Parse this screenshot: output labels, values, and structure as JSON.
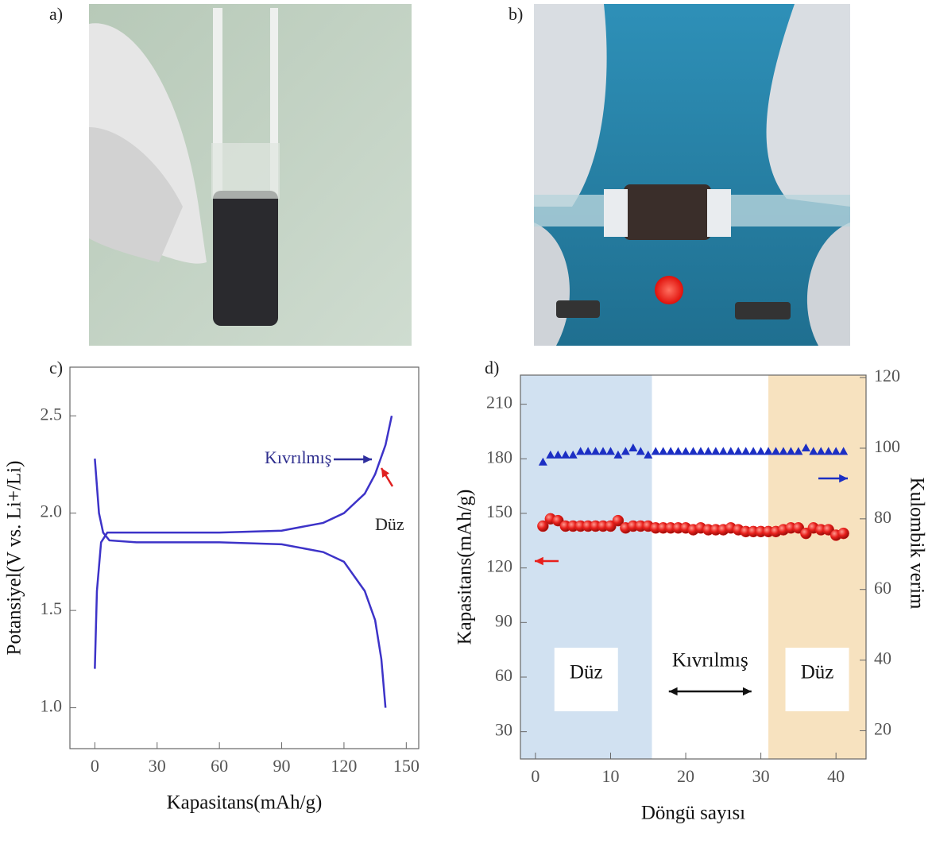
{
  "panels": {
    "a": "a)",
    "b": "b)"
  },
  "chart_data": [
    {
      "type": "line",
      "panel": "c)",
      "xlabel": "Kapasitans(mAh/g)",
      "ylabel": "Potansiyel(V vs. Li+/Li)",
      "xlim": [
        -12,
        156
      ],
      "ylim": [
        0.79,
        2.75
      ],
      "xticks": [
        0,
        30,
        60,
        90,
        120,
        150
      ],
      "yticks": [
        {
          "value": 1,
          "label": "1.0"
        },
        1.5,
        {
          "value": 2,
          "label": "2.0"
        },
        2.5
      ],
      "series": [
        {
          "color": "#3d33c8",
          "x": [
            0,
            1,
            3,
            6,
            20,
            60,
            90,
            110,
            120,
            130,
            135,
            140,
            143
          ],
          "values": [
            1.2,
            1.6,
            1.85,
            1.9,
            1.9,
            1.9,
            1.91,
            1.95,
            2.0,
            2.1,
            2.2,
            2.35,
            2.5
          ]
        },
        {
          "color": "#3d33c8",
          "x": [
            0,
            2,
            4,
            7,
            20,
            60,
            90,
            110,
            120,
            130,
            135,
            138,
            140
          ],
          "values": [
            2.28,
            2.0,
            1.9,
            1.86,
            1.85,
            1.85,
            1.84,
            1.8,
            1.75,
            1.6,
            1.45,
            1.25,
            1.0
          ]
        }
      ],
      "annotations": [
        {
          "text": "Kıvrılmış",
          "color": "#2e2e8e"
        },
        {
          "text": "Düz",
          "color": "#222222"
        }
      ]
    },
    {
      "type": "scatter",
      "panel": "d)",
      "xlabel": "Döngü sayısı",
      "ylabel": "Kapasitans(mAh/g)",
      "y2label": "Kulombik verim",
      "xlim": [
        -2,
        44
      ],
      "ylim": [
        15,
        226
      ],
      "y2lim": [
        12,
        120.7
      ],
      "xticks": [
        0,
        10,
        20,
        30,
        40
      ],
      "yticks": [
        30,
        60,
        90,
        120,
        150,
        180,
        210
      ],
      "y2ticks": [
        20,
        40,
        60,
        80,
        100,
        120
      ],
      "regions": [
        {
          "label": "Düz",
          "x0": -2,
          "x1": 15.5,
          "color": "#c9dcef"
        },
        {
          "label": "Kıvrılmış",
          "x0": 15.5,
          "x1": 31
        },
        {
          "label": "Düz",
          "x0": 31,
          "x1": 44,
          "color": "#f6ddb4"
        }
      ],
      "series": [
        {
          "color": "#e8201c",
          "marker": "circle",
          "x": [
            1,
            2,
            3,
            4,
            5,
            6,
            7,
            8,
            9,
            10,
            11,
            12,
            13,
            14,
            15,
            16,
            17,
            18,
            19,
            20,
            21,
            22,
            23,
            24,
            25,
            26,
            27,
            28,
            29,
            30,
            31,
            32,
            33,
            34,
            35,
            36,
            37,
            38,
            39,
            40,
            41
          ],
          "values": [
            143,
            147,
            146,
            143,
            143,
            143,
            143,
            143,
            143,
            143,
            146,
            142,
            143,
            143,
            143,
            142,
            142,
            142,
            142,
            142,
            141,
            142,
            141,
            141,
            141,
            142,
            141,
            140,
            140,
            140,
            140,
            140,
            141,
            142,
            142,
            139,
            142,
            141,
            141,
            138,
            139
          ]
        },
        {
          "color": "#1c2fc4",
          "marker": "triangle",
          "axis": "y2",
          "x": [
            1,
            2,
            3,
            4,
            5,
            6,
            7,
            8,
            9,
            10,
            11,
            12,
            13,
            14,
            15,
            16,
            17,
            18,
            19,
            20,
            21,
            22,
            23,
            24,
            25,
            26,
            27,
            28,
            29,
            30,
            31,
            32,
            33,
            34,
            35,
            36,
            37,
            38,
            39,
            40,
            41
          ],
          "values": [
            96,
            98,
            98,
            98,
            98,
            99,
            99,
            99,
            99,
            99,
            98,
            99,
            100,
            99,
            98,
            99,
            99,
            99,
            99,
            99,
            99,
            99,
            99,
            99,
            99,
            99,
            99,
            99,
            99,
            99,
            99,
            99,
            99,
            99,
            99,
            100,
            99,
            99,
            99,
            99,
            99
          ]
        }
      ]
    }
  ]
}
